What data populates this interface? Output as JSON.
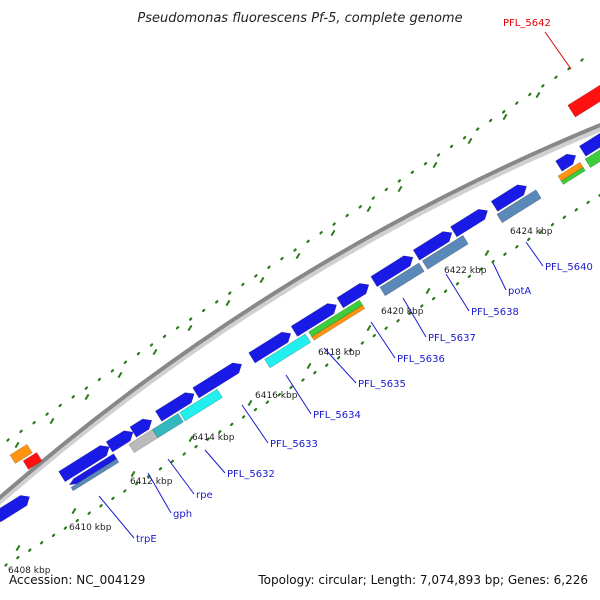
{
  "title": "Pseudomonas fluorescens Pf-5, complete genome",
  "accession_text": "Accession: NC_004129",
  "stats_text": "Topology: circular; Length: 7,074,893 bp; Genes: 6,226",
  "colors": {
    "backbone": "#888888",
    "cds": "#1a1ae6",
    "highlight": "#ff1111",
    "gene_label": "#1a1acc",
    "highlight_label": "#dd0000",
    "tick": "#2a7a1a",
    "cog_orange": "#ff9410",
    "cog_green": "#3ccc3c",
    "cog_steel": "#5a88b8",
    "cog_cyan": "#22eeee",
    "cog_teal": "#33b8bf",
    "cog_gray": "#bbbbbb"
  },
  "tick_labels": [
    "6408 kbp",
    "6410 kbp",
    "6412 kbp",
    "6414 kbp",
    "6416 kbp",
    "6418 kbp",
    "6420 kbp",
    "6422 kbp",
    "6424 kbp"
  ],
  "gene_labels": [
    "trpE",
    "gph",
    "rpe",
    "PFL_5632",
    "PFL_5633",
    "PFL_5634",
    "PFL_5635",
    "PFL_5636",
    "PFL_5637",
    "PFL_5638",
    "potA",
    "PFL_5640",
    "PFL_5642"
  ]
}
